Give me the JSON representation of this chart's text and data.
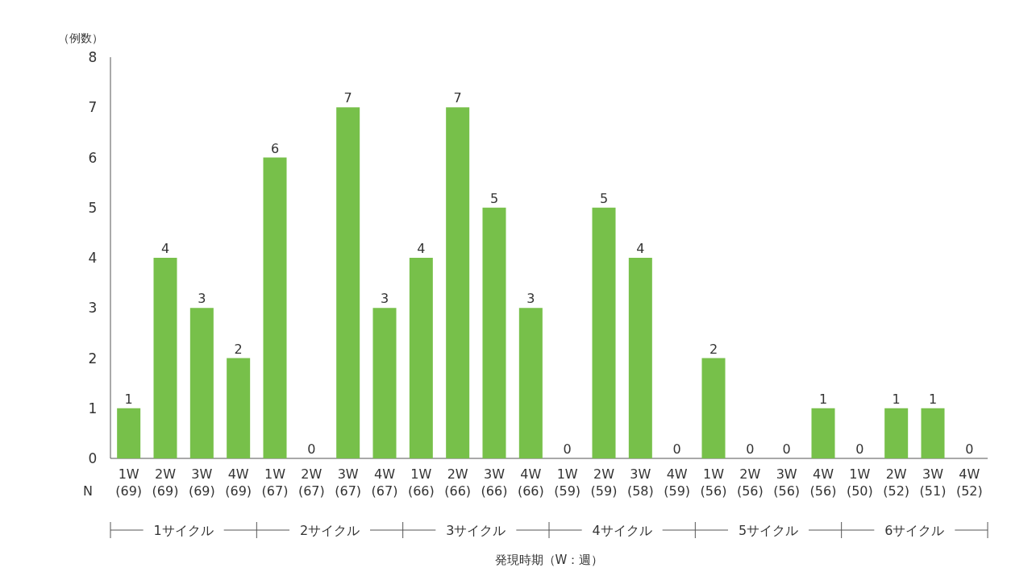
{
  "chart_data": {
    "type": "bar",
    "ylabel": "（例数）",
    "xlabel": "発現時期（W：週）",
    "categories": [
      "1W\n(69)",
      "2W\n(69)",
      "3W\n(69)",
      "4W\n(69)",
      "1W\n(67)",
      "2W\n(67)",
      "3W\n(67)",
      "4W\n(67)",
      "1W\n(66)",
      "2W\n(66)",
      "3W\n(66)",
      "4W\n(66)",
      "1W\n(59)",
      "2W\n(59)",
      "3W\n(58)",
      "4W\n(59)",
      "1W\n(56)",
      "2W\n(56)",
      "3W\n(56)",
      "4W\n(56)",
      "1W\n(50)",
      "2W\n(52)",
      "3W\n(51)",
      "4W\n(52)"
    ],
    "values": [
      1,
      4,
      3,
      2,
      6,
      0,
      7,
      3,
      4,
      7,
      5,
      3,
      0,
      5,
      4,
      0,
      2,
      0,
      0,
      1,
      0,
      1,
      1,
      0
    ],
    "color": "#77c04a",
    "ylim": [
      0,
      8
    ],
    "yticks": [
      0,
      1,
      2,
      3,
      4,
      5,
      6,
      7,
      8
    ],
    "data_labels": true,
    "annotations": [
      "N",
      "1サイクル",
      "2サイクル",
      "3サイクル",
      "4サイクル",
      "5サイクル",
      "6サイクル"
    ]
  }
}
